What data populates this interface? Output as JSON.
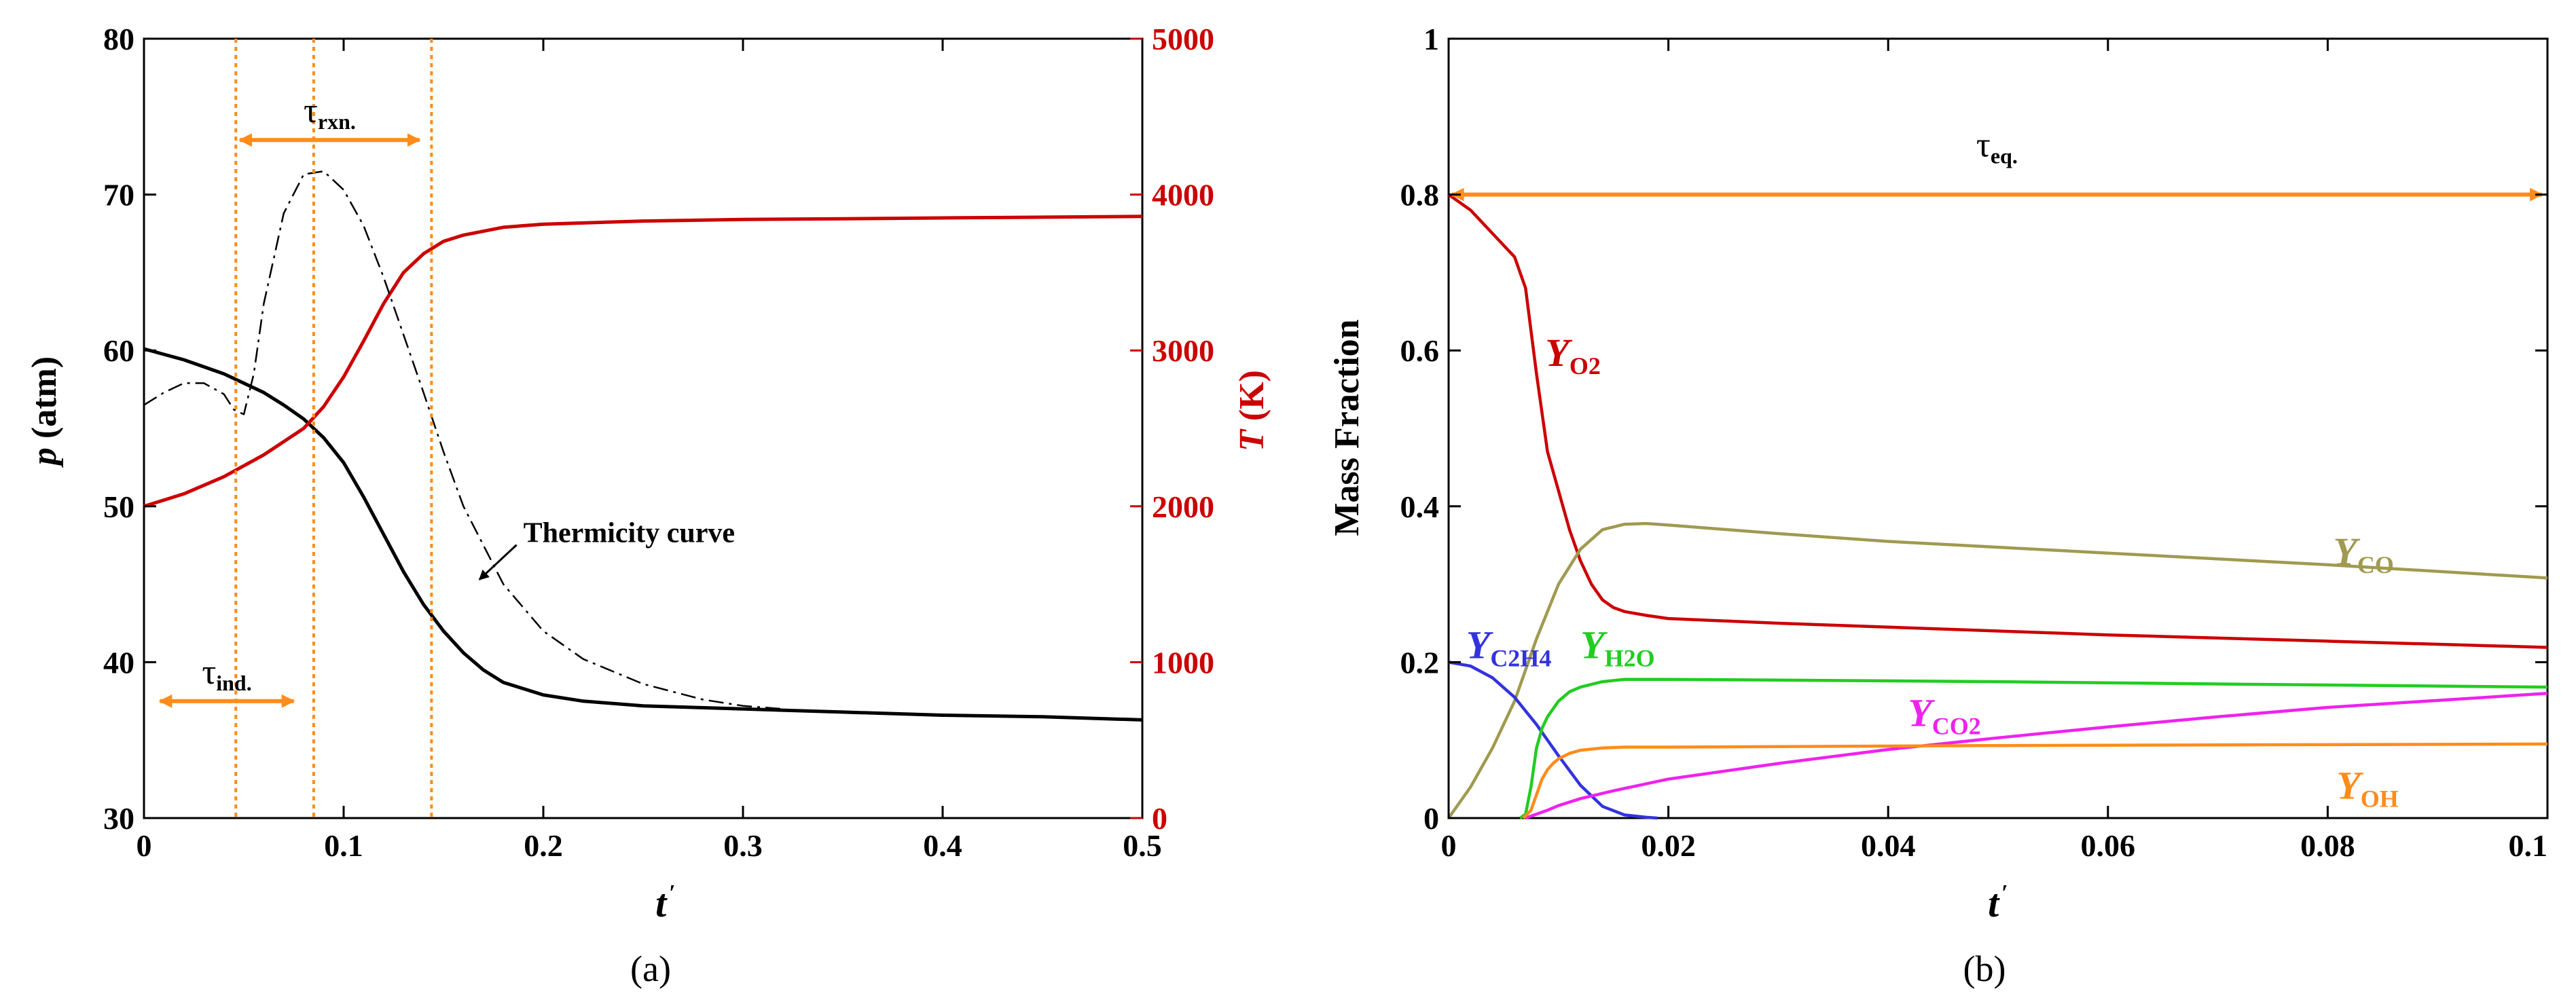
{
  "chart_data": [
    {
      "type": "line",
      "panel_label": "(a)",
      "xlabel": "t",
      "xlabel_prime": "′",
      "xlim": [
        0,
        0.5
      ],
      "x_ticks": [
        0,
        0.1,
        0.2,
        0.3,
        0.4,
        0.5
      ],
      "x_tick_labels": [
        "0",
        "0.1",
        "0.2",
        "0.3",
        "0.4",
        "0.5"
      ],
      "left_axis": {
        "label_italic": "p",
        "label_rest": " (atm)",
        "lim": [
          30,
          80
        ],
        "ticks": [
          30,
          40,
          50,
          60,
          70,
          80
        ],
        "tick_labels": [
          "30",
          "40",
          "50",
          "60",
          "70",
          "80"
        ]
      },
      "right_axis": {
        "label_italic": "T",
        "label_rest": " (K)",
        "color": "#cc0000",
        "lim": [
          0,
          5000
        ],
        "ticks": [
          0,
          1000,
          2000,
          3000,
          4000,
          5000
        ],
        "tick_labels": [
          "0",
          "1000",
          "2000",
          "3000",
          "4000",
          "5000"
        ]
      },
      "series": [
        {
          "name": "Pressure p",
          "axis": "left",
          "color": "#000000",
          "style": "solid",
          "x": [
            0,
            0.02,
            0.04,
            0.06,
            0.07,
            0.08,
            0.09,
            0.1,
            0.11,
            0.12,
            0.13,
            0.14,
            0.15,
            0.16,
            0.17,
            0.18,
            0.2,
            0.22,
            0.25,
            0.3,
            0.35,
            0.4,
            0.45,
            0.5
          ],
          "values": [
            60.1,
            59.4,
            58.5,
            57.3,
            56.5,
            55.6,
            54.4,
            52.8,
            50.6,
            48.2,
            45.8,
            43.7,
            42.0,
            40.6,
            39.5,
            38.7,
            37.9,
            37.5,
            37.2,
            37.0,
            36.8,
            36.6,
            36.5,
            36.3
          ]
        },
        {
          "name": "Temperature T",
          "axis": "right",
          "color": "#cc0000",
          "style": "solid",
          "x": [
            0,
            0.02,
            0.04,
            0.06,
            0.08,
            0.09,
            0.1,
            0.11,
            0.12,
            0.13,
            0.14,
            0.15,
            0.16,
            0.18,
            0.2,
            0.25,
            0.3,
            0.35,
            0.4,
            0.45,
            0.5
          ],
          "values": [
            2000,
            2080,
            2190,
            2330,
            2500,
            2640,
            2830,
            3060,
            3300,
            3500,
            3620,
            3700,
            3740,
            3790,
            3810,
            3830,
            3840,
            3845,
            3850,
            3855,
            3860
          ]
        },
        {
          "name": "Thermicity curve",
          "axis": "left",
          "color": "#000000",
          "style": "dashdot",
          "x": [
            0,
            0.01,
            0.02,
            0.03,
            0.04,
            0.045,
            0.05,
            0.055,
            0.06,
            0.07,
            0.08,
            0.09,
            0.1,
            0.11,
            0.12,
            0.13,
            0.14,
            0.15,
            0.16,
            0.18,
            0.2,
            0.22,
            0.25,
            0.28,
            0.3,
            0.32
          ],
          "values": [
            56.5,
            57.3,
            57.9,
            57.9,
            57.2,
            56.2,
            55.9,
            58.5,
            63.0,
            68.8,
            71.3,
            71.5,
            70.3,
            68.0,
            64.7,
            61.0,
            57.3,
            53.5,
            50.0,
            45.0,
            42.0,
            40.2,
            38.6,
            37.6,
            37.2,
            37.0
          ]
        }
      ],
      "markers": {
        "vlines_x": [
          0.046,
          0.085,
          0.144
        ],
        "color": "#ff8c1a",
        "tau_ind": {
          "x_from": 0.008,
          "x_to": 0.075,
          "y": 37.5,
          "label": "τ",
          "sub": "ind."
        },
        "tau_rxn": {
          "x_from": 0.048,
          "x_to": 0.138,
          "y": 73.5,
          "label": "τ",
          "sub": "rxn."
        }
      },
      "annotation": {
        "text": "Thermicity curve",
        "text_x": 0.19,
        "text_y": 47.7,
        "arrow_to_x": 0.168,
        "arrow_to_y": 45.3
      }
    },
    {
      "type": "line",
      "panel_label": "(b)",
      "xlabel": "t",
      "xlabel_prime": "′",
      "xlim": [
        0,
        0.1
      ],
      "x_ticks": [
        0,
        0.02,
        0.04,
        0.06,
        0.08,
        0.1
      ],
      "x_tick_labels": [
        "0",
        "0.02",
        "0.04",
        "0.06",
        "0.08",
        "0.1"
      ],
      "ylabel": "Mass Fraction",
      "ylim": [
        0,
        1
      ],
      "y_ticks": [
        0,
        0.2,
        0.4,
        0.6,
        0.8,
        1
      ],
      "y_tick_labels": [
        "0",
        "0.2",
        "0.4",
        "0.6",
        "0.8",
        "1"
      ],
      "series": [
        {
          "name": "Y_O2",
          "label": "Y",
          "sub": "O2",
          "color": "#cc0000",
          "label_x": 0.0088,
          "label_y": 0.58,
          "x": [
            0,
            0.002,
            0.004,
            0.006,
            0.007,
            0.008,
            0.009,
            0.01,
            0.011,
            0.012,
            0.013,
            0.014,
            0.015,
            0.016,
            0.018,
            0.02,
            0.03,
            0.04,
            0.06,
            0.08,
            0.1
          ],
          "values": [
            0.8,
            0.78,
            0.75,
            0.72,
            0.68,
            0.57,
            0.47,
            0.42,
            0.37,
            0.33,
            0.3,
            0.28,
            0.27,
            0.265,
            0.26,
            0.256,
            0.25,
            0.245,
            0.235,
            0.227,
            0.219
          ]
        },
        {
          "name": "Y_CO",
          "label": "Y",
          "sub": "CO",
          "color": "#a09a50",
          "label_x": 0.0805,
          "label_y": 0.325,
          "x": [
            0,
            0.002,
            0.004,
            0.006,
            0.008,
            0.01,
            0.012,
            0.014,
            0.016,
            0.018,
            0.02,
            0.03,
            0.04,
            0.06,
            0.08,
            0.1
          ],
          "values": [
            0,
            0.04,
            0.09,
            0.15,
            0.23,
            0.3,
            0.345,
            0.37,
            0.377,
            0.378,
            0.376,
            0.365,
            0.355,
            0.34,
            0.325,
            0.308
          ]
        },
        {
          "name": "Y_C2H4",
          "label": "Y",
          "sub": "C2H4",
          "color": "#3333dd",
          "label_x": 0.0016,
          "label_y": 0.205,
          "x": [
            0,
            0.002,
            0.004,
            0.006,
            0.008,
            0.01,
            0.012,
            0.014,
            0.016,
            0.018,
            0.019
          ],
          "values": [
            0.2,
            0.195,
            0.18,
            0.155,
            0.12,
            0.08,
            0.042,
            0.015,
            0.004,
            0.001,
            0
          ]
        },
        {
          "name": "Y_H2O",
          "label": "Y",
          "sub": "H2O",
          "color": "#22cc22",
          "label_x": 0.012,
          "label_y": 0.205,
          "x": [
            0.0065,
            0.007,
            0.0075,
            0.008,
            0.0085,
            0.009,
            0.01,
            0.011,
            0.012,
            0.014,
            0.016,
            0.02,
            0.03,
            0.05,
            0.07,
            0.1
          ],
          "values": [
            0,
            0.005,
            0.04,
            0.09,
            0.115,
            0.13,
            0.15,
            0.162,
            0.168,
            0.175,
            0.178,
            0.178,
            0.177,
            0.175,
            0.172,
            0.168
          ]
        },
        {
          "name": "Y_CO2",
          "label": "Y",
          "sub": "CO2",
          "color": "#ee22ee",
          "label_x": 0.0418,
          "label_y": 0.118,
          "x": [
            0.007,
            0.008,
            0.009,
            0.01,
            0.012,
            0.015,
            0.02,
            0.03,
            0.04,
            0.05,
            0.06,
            0.07,
            0.08,
            0.09,
            0.1
          ],
          "values": [
            0,
            0.005,
            0.01,
            0.016,
            0.025,
            0.035,
            0.05,
            0.07,
            0.088,
            0.103,
            0.117,
            0.13,
            0.142,
            0.151,
            0.16
          ]
        },
        {
          "name": "Y_OH",
          "label": "Y",
          "sub": "OH",
          "color": "#ff8c1a",
          "label_x": 0.0808,
          "label_y": 0.025,
          "x": [
            0.0068,
            0.0075,
            0.008,
            0.0085,
            0.009,
            0.0095,
            0.01,
            0.011,
            0.012,
            0.014,
            0.016,
            0.02,
            0.05,
            0.1
          ],
          "values": [
            0,
            0.01,
            0.03,
            0.05,
            0.062,
            0.07,
            0.076,
            0.083,
            0.087,
            0.09,
            0.091,
            0.091,
            0.093,
            0.095
          ]
        }
      ],
      "markers": {
        "color": "#ff8c1a",
        "tau_eq": {
          "x_from": 0.0003,
          "x_to": 0.0995,
          "y": 0.8,
          "label": "τ",
          "sub": "eq."
        }
      }
    }
  ]
}
